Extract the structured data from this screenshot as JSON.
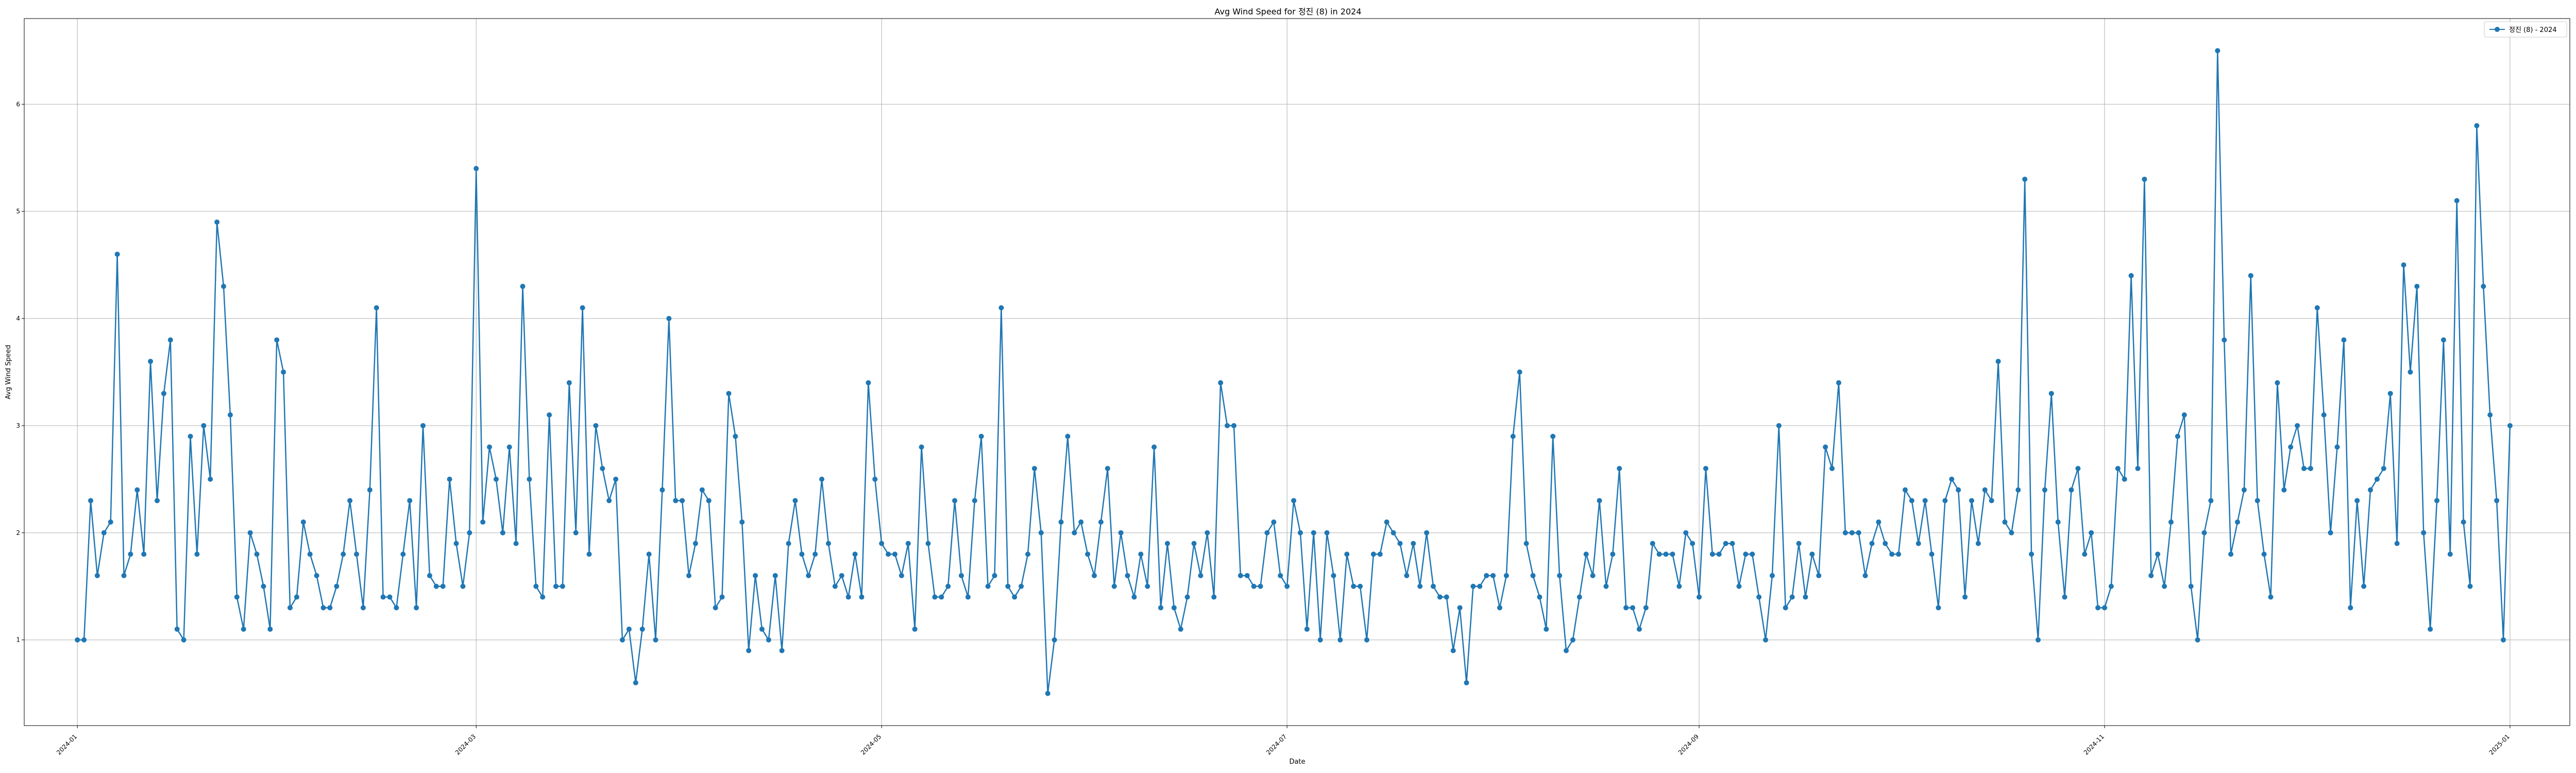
{
  "chart_data": {
    "type": "line",
    "title": "Avg Wind Speed for 정진 (8) in 2024",
    "xlabel": "Date",
    "ylabel": "Avg Wind Speed",
    "grid": true,
    "legend_position": "top-right",
    "x_range": [
      "2023-12-24",
      "2025-01-10"
    ],
    "ylim": [
      0.2,
      6.8
    ],
    "y_ticks": [
      1,
      2,
      3,
      4,
      5,
      6
    ],
    "x_ticks": [
      {
        "date": "2024-01-01",
        "label": "2024-01"
      },
      {
        "date": "2024-03-01",
        "label": "2024-03"
      },
      {
        "date": "2024-05-01",
        "label": "2024-05"
      },
      {
        "date": "2024-07-01",
        "label": "2024-07"
      },
      {
        "date": "2024-09-01",
        "label": "2024-09"
      },
      {
        "date": "2024-11-01",
        "label": "2024-11"
      },
      {
        "date": "2025-01-01",
        "label": "2025-01"
      }
    ],
    "series": [
      {
        "name": "정진 (8) - 2024",
        "color": "#1f77b4",
        "marker": "circle",
        "start_date": "2024-01-01",
        "values": [
          1.0,
          1.0,
          2.3,
          1.6,
          2.0,
          2.1,
          4.6,
          1.6,
          1.8,
          2.4,
          1.8,
          3.6,
          2.3,
          3.3,
          3.8,
          1.1,
          1.0,
          2.9,
          1.8,
          3.0,
          2.5,
          4.9,
          4.3,
          3.1,
          1.4,
          1.1,
          2.0,
          1.8,
          1.5,
          1.1,
          3.8,
          3.5,
          1.3,
          1.4,
          2.1,
          1.8,
          1.6,
          1.3,
          1.3,
          1.5,
          1.8,
          2.3,
          1.8,
          1.3,
          2.4,
          4.1,
          1.4,
          1.4,
          1.3,
          1.8,
          2.3,
          1.3,
          3.0,
          1.6,
          1.5,
          1.5,
          2.5,
          1.9,
          1.5,
          2.0,
          5.4,
          2.1,
          2.8,
          2.5,
          2.0,
          2.8,
          1.9,
          4.3,
          2.5,
          1.5,
          1.4,
          3.1,
          1.5,
          1.5,
          3.4,
          2.0,
          4.1,
          1.8,
          3.0,
          2.6,
          2.3,
          2.5,
          1.0,
          1.1,
          0.6,
          1.1,
          1.8,
          1.0,
          2.4,
          4.0,
          2.3,
          2.3,
          1.6,
          1.9,
          2.4,
          2.3,
          1.3,
          1.4,
          3.3,
          2.9,
          2.1,
          0.9,
          1.6,
          1.1,
          1.0,
          1.6,
          0.9,
          1.9,
          2.3,
          1.8,
          1.6,
          1.8,
          2.5,
          1.9,
          1.5,
          1.6,
          1.4,
          1.8,
          1.4,
          3.4,
          2.5,
          1.9,
          1.8,
          1.8,
          1.6,
          1.9,
          1.1,
          2.8,
          1.9,
          1.4,
          1.4,
          1.5,
          2.3,
          1.6,
          1.4,
          2.3,
          2.9,
          1.5,
          1.6,
          4.1,
          1.5,
          1.4,
          1.5,
          1.8,
          2.6,
          2.0,
          0.5,
          1.0,
          2.1,
          2.9,
          2.0,
          2.1,
          1.8,
          1.6,
          2.1,
          2.6,
          1.5,
          2.0,
          1.6,
          1.4,
          1.8,
          1.5,
          2.8,
          1.3,
          1.9,
          1.3,
          1.1,
          1.4,
          1.9,
          1.6,
          2.0,
          1.4,
          3.4,
          3.0,
          3.0,
          1.6,
          1.6,
          1.5,
          1.5,
          2.0,
          2.1,
          1.6,
          1.5,
          2.3,
          2.0,
          1.1,
          2.0,
          1.0,
          2.0,
          1.6,
          1.0,
          1.8,
          1.5,
          1.5,
          1.0,
          1.8,
          1.8,
          2.1,
          2.0,
          1.9,
          1.6,
          1.9,
          1.5,
          2.0,
          1.5,
          1.4,
          1.4,
          0.9,
          1.3,
          0.6,
          1.5,
          1.5,
          1.6,
          1.6,
          1.3,
          1.6,
          2.9,
          3.5,
          1.9,
          1.6,
          1.4,
          1.1,
          2.9,
          1.6,
          0.9,
          1.0,
          1.4,
          1.8,
          1.6,
          2.3,
          1.5,
          1.8,
          2.6,
          1.3,
          1.3,
          1.1,
          1.3,
          1.9,
          1.8,
          1.8,
          1.8,
          1.5,
          2.0,
          1.9,
          1.4,
          2.6,
          1.8,
          1.8,
          1.9,
          1.9,
          1.5,
          1.8,
          1.8,
          1.4,
          1.0,
          1.6,
          3.0,
          1.3,
          1.4,
          1.9,
          1.4,
          1.8,
          1.6,
          2.8,
          2.6,
          3.4,
          2.0,
          2.0,
          2.0,
          1.6,
          1.9,
          2.1,
          1.9,
          1.8,
          1.8,
          2.4,
          2.3,
          1.9,
          2.3,
          1.8,
          1.3,
          2.3,
          2.5,
          2.4,
          1.4,
          2.3,
          1.9,
          2.4,
          2.3,
          3.6,
          2.1,
          2.0,
          2.4,
          5.3,
          1.8,
          1.0,
          2.4,
          3.3,
          2.1,
          1.4,
          2.4,
          2.6,
          1.8,
          2.0,
          1.3,
          1.3,
          1.5,
          2.6,
          2.5,
          4.4,
          2.6,
          5.3,
          1.6,
          1.8,
          1.5,
          2.1,
          2.9,
          3.1,
          1.5,
          1.0,
          2.0,
          2.3,
          6.5,
          3.8,
          1.8,
          2.1,
          2.4,
          4.4,
          2.3,
          1.8,
          1.4,
          3.4,
          2.4,
          2.8,
          3.0,
          2.6,
          2.6,
          4.1,
          3.1,
          2.0,
          2.8,
          3.8,
          1.3,
          2.3,
          1.5,
          2.4,
          2.5,
          2.6,
          3.3,
          1.9,
          4.5,
          3.5,
          4.3,
          2.0,
          1.1,
          2.3,
          3.8,
          1.8,
          5.1,
          2.1,
          1.5,
          5.8,
          4.3,
          3.1,
          2.3,
          1.0,
          3.0
        ]
      }
    ]
  }
}
